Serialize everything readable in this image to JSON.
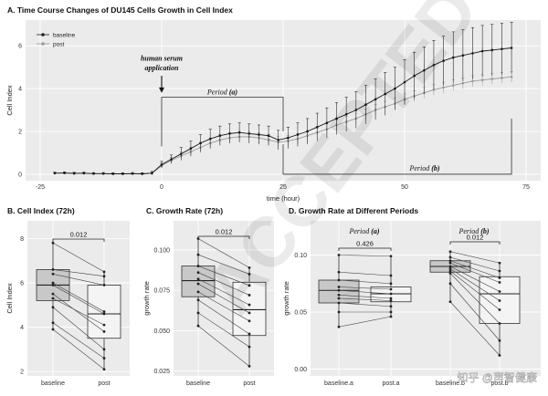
{
  "chart_data": [
    {
      "id": "A",
      "type": "line",
      "title": "A. Time Course Changes of DU145 Cells Growth in Cell Index",
      "xlabel": "time (hour)",
      "ylabel": "Cell Index",
      "xlim": [
        -28,
        78
      ],
      "ylim": [
        -0.3,
        7.2
      ],
      "xticks": [
        -25,
        0,
        25,
        50,
        75
      ],
      "yticks": [
        0,
        2,
        4,
        6
      ],
      "legend": {
        "position": "top-left",
        "entries": [
          "baseline",
          "post"
        ]
      },
      "annotations": {
        "serum_line1": "human serum",
        "serum_line2": "application",
        "serum_x": 0,
        "period_a_label": "Period ",
        "period_a_letter": "(a)",
        "period_a_range": [
          0,
          25
        ],
        "period_b_label": "Period ",
        "period_b_letter": "(b)",
        "period_b_range": [
          25,
          72
        ]
      },
      "x": [
        -22,
        -20,
        -18,
        -16,
        -14,
        -12,
        -10,
        -8,
        -6,
        -4,
        -2,
        0,
        2,
        4,
        6,
        8,
        10,
        12,
        14,
        16,
        18,
        20,
        22,
        24,
        26,
        28,
        30,
        32,
        34,
        36,
        38,
        40,
        42,
        44,
        46,
        48,
        50,
        52,
        54,
        56,
        58,
        60,
        62,
        64,
        66,
        68,
        70,
        72
      ],
      "series": [
        {
          "name": "baseline",
          "values": [
            0.05,
            0.06,
            0.04,
            0.05,
            0.03,
            0.03,
            0.02,
            0.02,
            0.03,
            0.02,
            0.05,
            0.45,
            0.7,
            0.95,
            1.2,
            1.45,
            1.65,
            1.8,
            1.9,
            1.95,
            1.9,
            1.85,
            1.8,
            1.6,
            1.7,
            1.85,
            2.0,
            2.2,
            2.4,
            2.6,
            2.8,
            3.0,
            3.25,
            3.5,
            3.75,
            4.0,
            4.3,
            4.6,
            4.85,
            5.1,
            5.3,
            5.45,
            5.55,
            5.65,
            5.75,
            5.8,
            5.85,
            5.9
          ],
          "err": [
            0.05,
            0.05,
            0.05,
            0.05,
            0.05,
            0.05,
            0.05,
            0.05,
            0.05,
            0.05,
            0.08,
            0.15,
            0.2,
            0.3,
            0.35,
            0.4,
            0.45,
            0.45,
            0.45,
            0.45,
            0.45,
            0.45,
            0.45,
            0.45,
            0.5,
            0.55,
            0.6,
            0.65,
            0.7,
            0.75,
            0.8,
            0.85,
            0.9,
            0.95,
            1.0,
            1.0,
            1.05,
            1.1,
            1.1,
            1.15,
            1.15,
            1.2,
            1.2,
            1.2,
            1.2,
            1.2,
            1.2,
            1.2
          ]
        },
        {
          "name": "post",
          "values": [
            0.05,
            0.05,
            0.04,
            0.04,
            0.03,
            0.03,
            0.02,
            0.02,
            0.03,
            0.02,
            0.05,
            0.4,
            0.65,
            0.85,
            1.05,
            1.25,
            1.45,
            1.6,
            1.7,
            1.75,
            1.75,
            1.7,
            1.6,
            1.5,
            1.55,
            1.65,
            1.8,
            1.95,
            2.1,
            2.3,
            2.45,
            2.6,
            2.8,
            3.0,
            3.15,
            3.3,
            3.5,
            3.65,
            3.8,
            3.95,
            4.05,
            4.15,
            4.25,
            4.35,
            4.4,
            4.45,
            4.5,
            4.55
          ],
          "err": [
            0.04,
            0.04,
            0.04,
            0.04,
            0.04,
            0.04,
            0.04,
            0.04,
            0.04,
            0.04,
            0.06,
            0.12,
            0.15,
            0.2,
            0.22,
            0.25,
            0.25,
            0.25,
            0.25,
            0.25,
            0.25,
            0.25,
            0.25,
            0.25,
            0.25,
            0.25,
            0.25,
            0.25,
            0.25,
            0.25,
            0.25,
            0.25,
            0.25,
            0.25,
            0.25,
            0.25,
            0.25,
            0.25,
            0.25,
            0.25,
            0.25,
            0.25,
            0.25,
            0.25,
            0.25,
            0.25,
            0.25,
            0.25
          ]
        }
      ]
    },
    {
      "id": "B",
      "type": "box",
      "title": "B. Cell Index (72h)",
      "ylabel": "Cell Index",
      "ylim": [
        1.8,
        8.8
      ],
      "yticks": [
        2,
        4,
        6,
        8
      ],
      "categories": [
        "baseline",
        "post"
      ],
      "boxes": [
        {
          "min": 3.9,
          "q1": 5.2,
          "median": 5.9,
          "q3": 6.6,
          "max": 7.8
        },
        {
          "min": 2.1,
          "q1": 3.5,
          "median": 4.6,
          "q3": 5.9,
          "max": 6.5
        }
      ],
      "paired": [
        [
          7.8,
          6.5
        ],
        [
          6.6,
          6.3
        ],
        [
          6.4,
          5.9
        ],
        [
          6.0,
          4.7
        ],
        [
          5.9,
          4.6
        ],
        [
          5.5,
          3.8
        ],
        [
          5.3,
          4.1
        ],
        [
          4.9,
          3.0
        ],
        [
          4.2,
          2.6
        ],
        [
          3.9,
          2.1
        ]
      ],
      "comparisons": [
        {
          "label": "0.012"
        }
      ]
    },
    {
      "id": "C",
      "type": "box",
      "title": "C. Growth Rate (72h)",
      "ylabel": "growth rate",
      "ylim": [
        0.022,
        0.118
      ],
      "yticks": [
        0.025,
        0.05,
        0.075,
        0.1
      ],
      "tick_labels": [
        "0.025",
        "0.050",
        "0.075",
        "0.100"
      ],
      "categories": [
        "baseline",
        "post"
      ],
      "boxes": [
        {
          "min": 0.053,
          "q1": 0.071,
          "median": 0.081,
          "q3": 0.09,
          "max": 0.107
        },
        {
          "min": 0.028,
          "q1": 0.047,
          "median": 0.063,
          "q3": 0.08,
          "max": 0.089
        }
      ],
      "paired": [
        [
          0.107,
          0.089
        ],
        [
          0.097,
          0.085
        ],
        [
          0.09,
          0.078
        ],
        [
          0.086,
          0.072
        ],
        [
          0.082,
          0.066
        ],
        [
          0.079,
          0.061
        ],
        [
          0.074,
          0.056
        ],
        [
          0.069,
          0.048
        ],
        [
          0.061,
          0.04
        ],
        [
          0.053,
          0.028
        ]
      ],
      "comparisons": [
        {
          "label": "0.012"
        }
      ]
    },
    {
      "id": "D",
      "type": "box",
      "title": "D. Growth Rate at Different Periods",
      "ylabel": "growth rate",
      "ylim": [
        -0.006,
        0.13
      ],
      "yticks": [
        0,
        0.05,
        0.1
      ],
      "tick_labels": [
        "0.00",
        "0.05",
        "0.10"
      ],
      "categories": [
        "baseline.a",
        "post.a",
        "baseline.b",
        "post.b"
      ],
      "boxes": [
        {
          "min": 0.037,
          "q1": 0.058,
          "median": 0.069,
          "q3": 0.078,
          "max": 0.1
        },
        {
          "min": 0.046,
          "q1": 0.059,
          "median": 0.066,
          "q3": 0.072,
          "max": 0.099
        },
        {
          "min": 0.059,
          "q1": 0.085,
          "median": 0.09,
          "q3": 0.095,
          "max": 0.103
        },
        {
          "min": 0.012,
          "q1": 0.04,
          "median": 0.066,
          "q3": 0.081,
          "max": 0.093
        }
      ],
      "paired_a": [
        [
          0.1,
          0.099
        ],
        [
          0.085,
          0.082
        ],
        [
          0.078,
          0.075
        ],
        [
          0.072,
          0.07
        ],
        [
          0.069,
          0.066
        ],
        [
          0.065,
          0.062
        ],
        [
          0.062,
          0.06
        ],
        [
          0.058,
          0.055
        ],
        [
          0.05,
          0.05
        ],
        [
          0.037,
          0.046
        ]
      ],
      "paired_b": [
        [
          0.103,
          0.093
        ],
        [
          0.098,
          0.086
        ],
        [
          0.095,
          0.08
        ],
        [
          0.093,
          0.076
        ],
        [
          0.09,
          0.068
        ],
        [
          0.088,
          0.06
        ],
        [
          0.086,
          0.052
        ],
        [
          0.084,
          0.04
        ],
        [
          0.075,
          0.025
        ],
        [
          0.059,
          0.012
        ]
      ],
      "comparisons": [
        {
          "label": "0.426",
          "period_label": "Period ",
          "period_letter": "(a)"
        },
        {
          "label": "0.012",
          "period_label": "Period ",
          "period_letter": "(b)"
        }
      ]
    }
  ],
  "watermarks": {
    "stamp": "ACCEPTED",
    "site": "知乎 @声智健康"
  }
}
